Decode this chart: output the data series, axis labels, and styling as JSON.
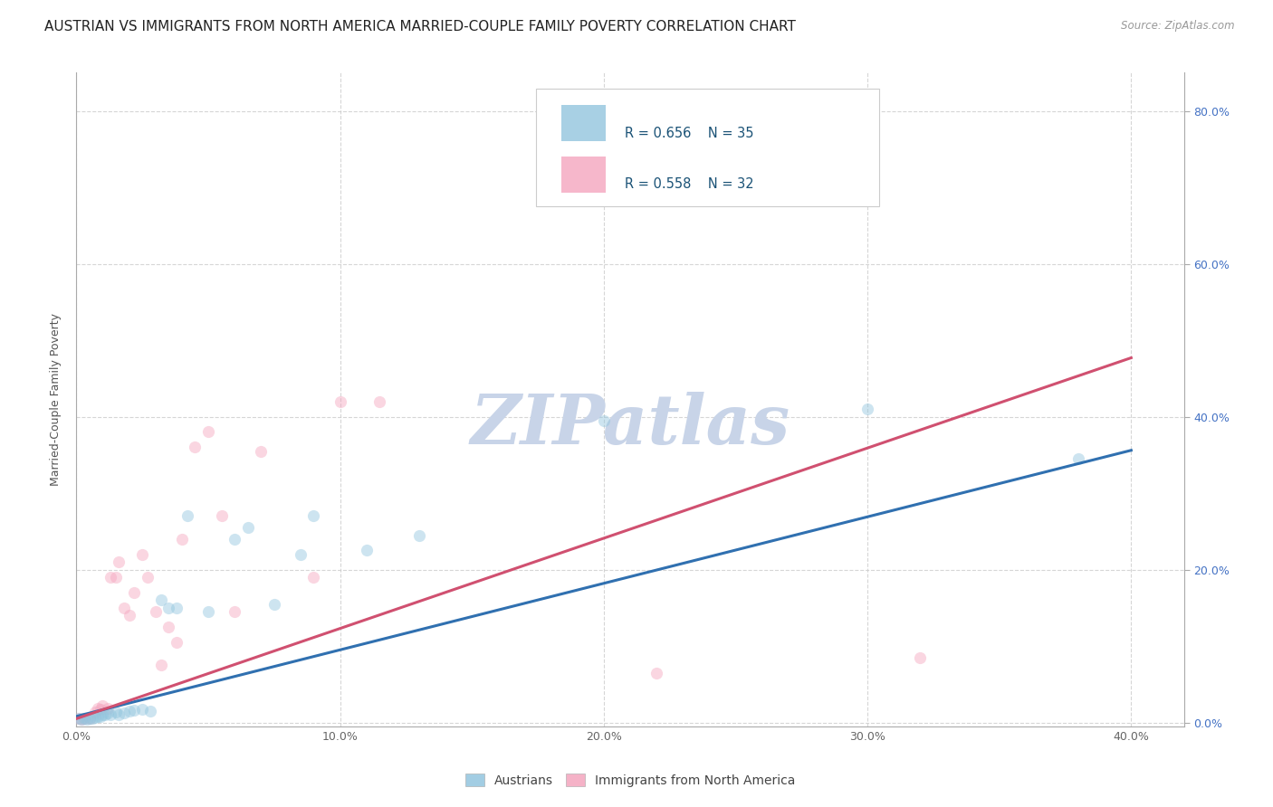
{
  "title": "AUSTRIAN VS IMMIGRANTS FROM NORTH AMERICA MARRIED-COUPLE FAMILY POVERTY CORRELATION CHART",
  "source": "Source: ZipAtlas.com",
  "ylabel_label": "Married-Couple Family Poverty",
  "xlim": [
    0.0,
    0.42
  ],
  "ylim": [
    -0.005,
    0.85
  ],
  "legend_labels": [
    "Austrians",
    "Immigrants from North America"
  ],
  "blue_color": "#92C5DE",
  "pink_color": "#F4A5BE",
  "blue_line_color": "#3070B0",
  "pink_line_color": "#D05070",
  "watermark_color": "#C8D4E8",
  "watermark": "ZIPatlas",
  "blue_points_x": [
    0.001,
    0.002,
    0.003,
    0.004,
    0.005,
    0.006,
    0.007,
    0.008,
    0.009,
    0.01,
    0.011,
    0.012,
    0.013,
    0.015,
    0.016,
    0.018,
    0.02,
    0.022,
    0.025,
    0.028,
    0.032,
    0.035,
    0.038,
    0.042,
    0.05,
    0.06,
    0.065,
    0.075,
    0.085,
    0.09,
    0.11,
    0.13,
    0.2,
    0.3,
    0.38
  ],
  "blue_points_y": [
    0.005,
    0.004,
    0.005,
    0.004,
    0.006,
    0.005,
    0.007,
    0.008,
    0.008,
    0.01,
    0.01,
    0.012,
    0.01,
    0.014,
    0.01,
    0.013,
    0.015,
    0.016,
    0.017,
    0.015,
    0.16,
    0.15,
    0.15,
    0.27,
    0.145,
    0.24,
    0.255,
    0.155,
    0.22,
    0.27,
    0.225,
    0.245,
    0.395,
    0.41,
    0.345
  ],
  "pink_points_x": [
    0.001,
    0.002,
    0.003,
    0.005,
    0.007,
    0.008,
    0.009,
    0.01,
    0.012,
    0.013,
    0.015,
    0.016,
    0.018,
    0.02,
    0.022,
    0.025,
    0.027,
    0.03,
    0.032,
    0.035,
    0.038,
    0.04,
    0.045,
    0.05,
    0.055,
    0.06,
    0.07,
    0.09,
    0.1,
    0.115,
    0.22,
    0.32
  ],
  "pink_points_y": [
    0.005,
    0.004,
    0.005,
    0.006,
    0.014,
    0.018,
    0.017,
    0.022,
    0.019,
    0.19,
    0.19,
    0.21,
    0.15,
    0.14,
    0.17,
    0.22,
    0.19,
    0.145,
    0.075,
    0.125,
    0.105,
    0.24,
    0.36,
    0.38,
    0.27,
    0.145,
    0.355,
    0.19,
    0.42,
    0.42,
    0.065,
    0.085
  ],
  "blue_slope": 0.87,
  "blue_intercept": 0.008,
  "pink_slope": 1.18,
  "pink_intercept": 0.005,
  "title_fontsize": 11,
  "axis_label_fontsize": 9,
  "tick_fontsize": 9,
  "point_size": 90,
  "point_alpha": 0.45,
  "watermark_fontsize": 55
}
